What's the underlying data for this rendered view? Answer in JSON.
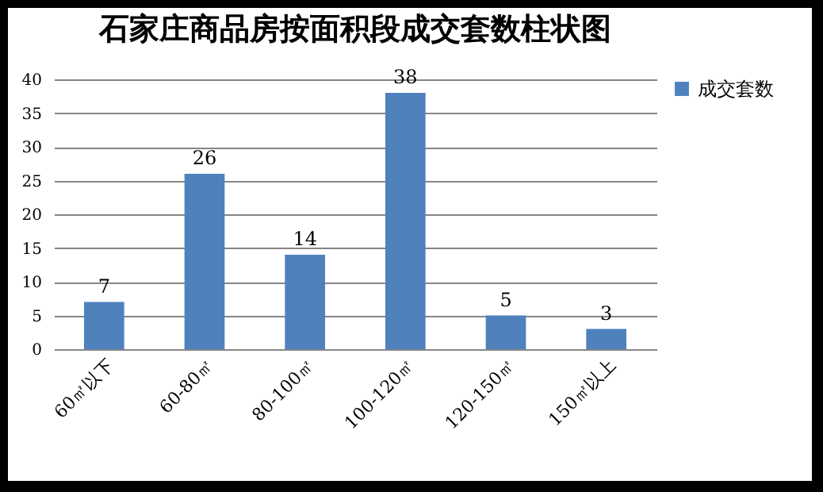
{
  "chart_data": {
    "type": "bar",
    "title": "石家庄商品房按面积段成交套数柱状图",
    "categories": [
      "60㎡以下",
      "60-80㎡",
      "80-100㎡",
      "100-120㎡",
      "120-150㎡",
      "150㎡以上"
    ],
    "series": [
      {
        "name": "成交套数",
        "color": "#4f81bd",
        "values": [
          7,
          26,
          14,
          38,
          5,
          3
        ]
      }
    ],
    "ylim": [
      0,
      40
    ],
    "yticks": [
      0,
      5,
      10,
      15,
      20,
      25,
      30,
      35,
      40
    ],
    "grid": "y",
    "legend": "right",
    "data_labels": true
  }
}
